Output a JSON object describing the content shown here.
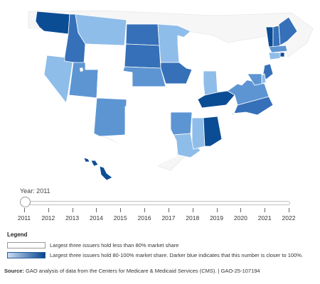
{
  "map": {
    "colors": {
      "none": "#ffffff",
      "light": "#8fbde9",
      "medium": "#5d95d3",
      "dark": "#3670b8",
      "darkest": "#0b4d95",
      "border": "#bdbdbd"
    },
    "states": {
      "WA": "darkest",
      "OR": "none",
      "CA": "none",
      "NV": "light",
      "ID": "dark",
      "MT": "light",
      "WY": "none",
      "UT": "medium",
      "AZ": "none",
      "CO": "none",
      "NM": "medium",
      "ND": "dark",
      "SD": "dark",
      "NE": "medium",
      "KS": "none",
      "OK": "none",
      "TX": "none",
      "MN": "light",
      "IA": "dark",
      "MO": "none",
      "AR": "medium",
      "LA": "light",
      "WI": "none",
      "IL": "none",
      "MI": "none",
      "IN": "light",
      "OH": "none",
      "KY": "darkest",
      "TN": "none",
      "MS": "light",
      "AL": "darkest",
      "GA": "none",
      "FL": "none",
      "SC": "none",
      "NC": "dark",
      "VA": "medium",
      "WV": "none",
      "PA": "none",
      "NY": "none",
      "VT": "darkest",
      "NH": "dark",
      "ME": "dark",
      "MA": "medium",
      "RI": "darkest",
      "CT": "light",
      "NJ": "dark",
      "DE": "light",
      "MD": "medium",
      "AK": "none",
      "HI": "darkest"
    }
  },
  "slider": {
    "year_label": "Year: 2011",
    "years": [
      "2011",
      "2012",
      "2013",
      "2014",
      "2015",
      "2016",
      "2017",
      "2018",
      "2019",
      "2020",
      "2021",
      "2022"
    ]
  },
  "legend": {
    "title": "Legend",
    "item1": "Largest three issuers hold less than 80% market share",
    "item2": "Largest three issuers hold 80-100% market share. Darker blue indicates that this number is closer to 100%."
  },
  "source": {
    "label": "Source:",
    "text": " GAO analysis of data from the Centers for Medicare & Medicaid Services (CMS). | GAO-25-107194"
  }
}
